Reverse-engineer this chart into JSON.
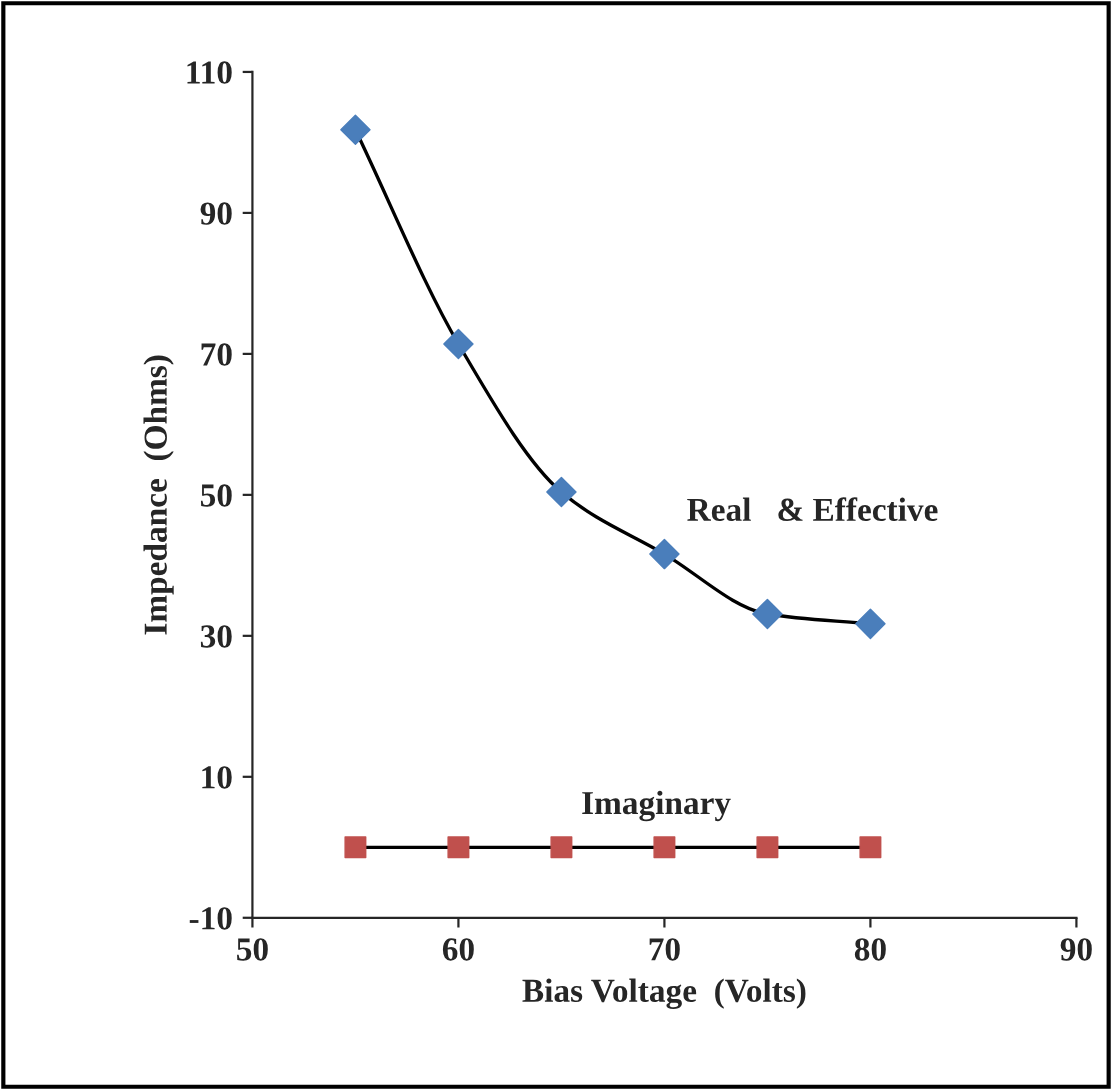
{
  "chart_data": {
    "type": "line",
    "xlabel": "Bias Voltage  (Volts)",
    "ylabel": "Impedance  (Ohms)",
    "x": [
      55,
      60,
      65,
      70,
      75,
      80
    ],
    "series": [
      {
        "name": "Real   & Effective",
        "color": "#4a7ebb",
        "marker": "diamond",
        "values": [
          101.8,
          71.4,
          50.4,
          41.6,
          33.1,
          31.7
        ]
      },
      {
        "name": "Imaginary",
        "color": "#c0504d",
        "marker": "square",
        "values": [
          0,
          0,
          0,
          0,
          0,
          0
        ]
      }
    ],
    "xlim": [
      50,
      90
    ],
    "xticks": [
      50,
      60,
      70,
      80,
      90
    ],
    "ylim": [
      -10,
      110
    ],
    "yticks": [
      -10,
      10,
      30,
      50,
      70,
      90,
      110
    ],
    "grid": false,
    "legend": false
  }
}
